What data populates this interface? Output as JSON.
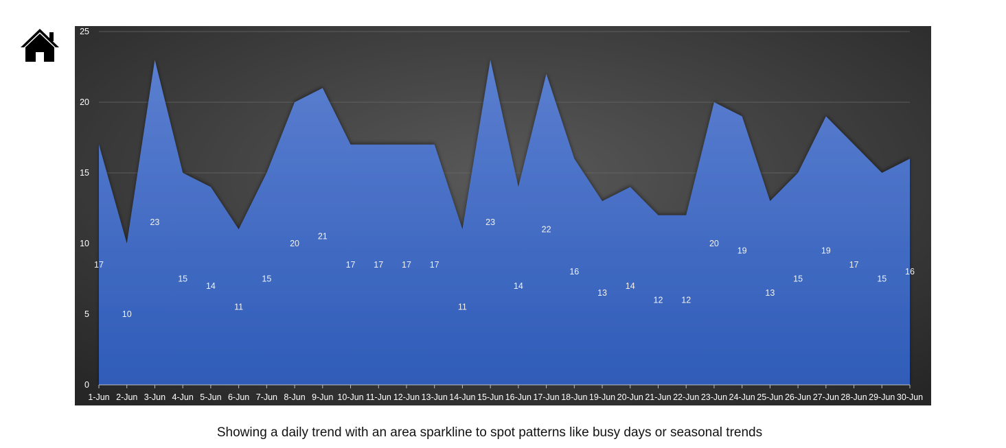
{
  "home": {
    "icon": "home-icon"
  },
  "caption": "Showing a daily trend with an area sparkline to spot patterns like busy days or seasonal trends",
  "colors": {
    "plot_background_center": "#595959",
    "plot_background_edge": "#262626",
    "area_top": "#5b7fd0",
    "area_bottom": "#2f5cb8",
    "gridline": "#6a6a6a",
    "text": "#ffffff"
  },
  "chart_data": {
    "type": "area",
    "categories": [
      "1-Jun",
      "2-Jun",
      "3-Jun",
      "4-Jun",
      "5-Jun",
      "6-Jun",
      "7-Jun",
      "8-Jun",
      "9-Jun",
      "10-Jun",
      "11-Jun",
      "12-Jun",
      "13-Jun",
      "14-Jun",
      "15-Jun",
      "16-Jun",
      "17-Jun",
      "18-Jun",
      "19-Jun",
      "20-Jun",
      "21-Jun",
      "22-Jun",
      "23-Jun",
      "24-Jun",
      "25-Jun",
      "26-Jun",
      "27-Jun",
      "28-Jun",
      "29-Jun",
      "30-Jun"
    ],
    "values": [
      17,
      10,
      23,
      15,
      14,
      11,
      15,
      20,
      21,
      17,
      17,
      17,
      17,
      11,
      23,
      14,
      22,
      16,
      13,
      14,
      12,
      12,
      20,
      19,
      13,
      15,
      19,
      17,
      15,
      16
    ],
    "y_ticks": [
      0,
      5,
      10,
      15,
      20,
      25
    ],
    "ylim": [
      0,
      25
    ],
    "grid": true,
    "data_labels": true,
    "legend": "none"
  }
}
